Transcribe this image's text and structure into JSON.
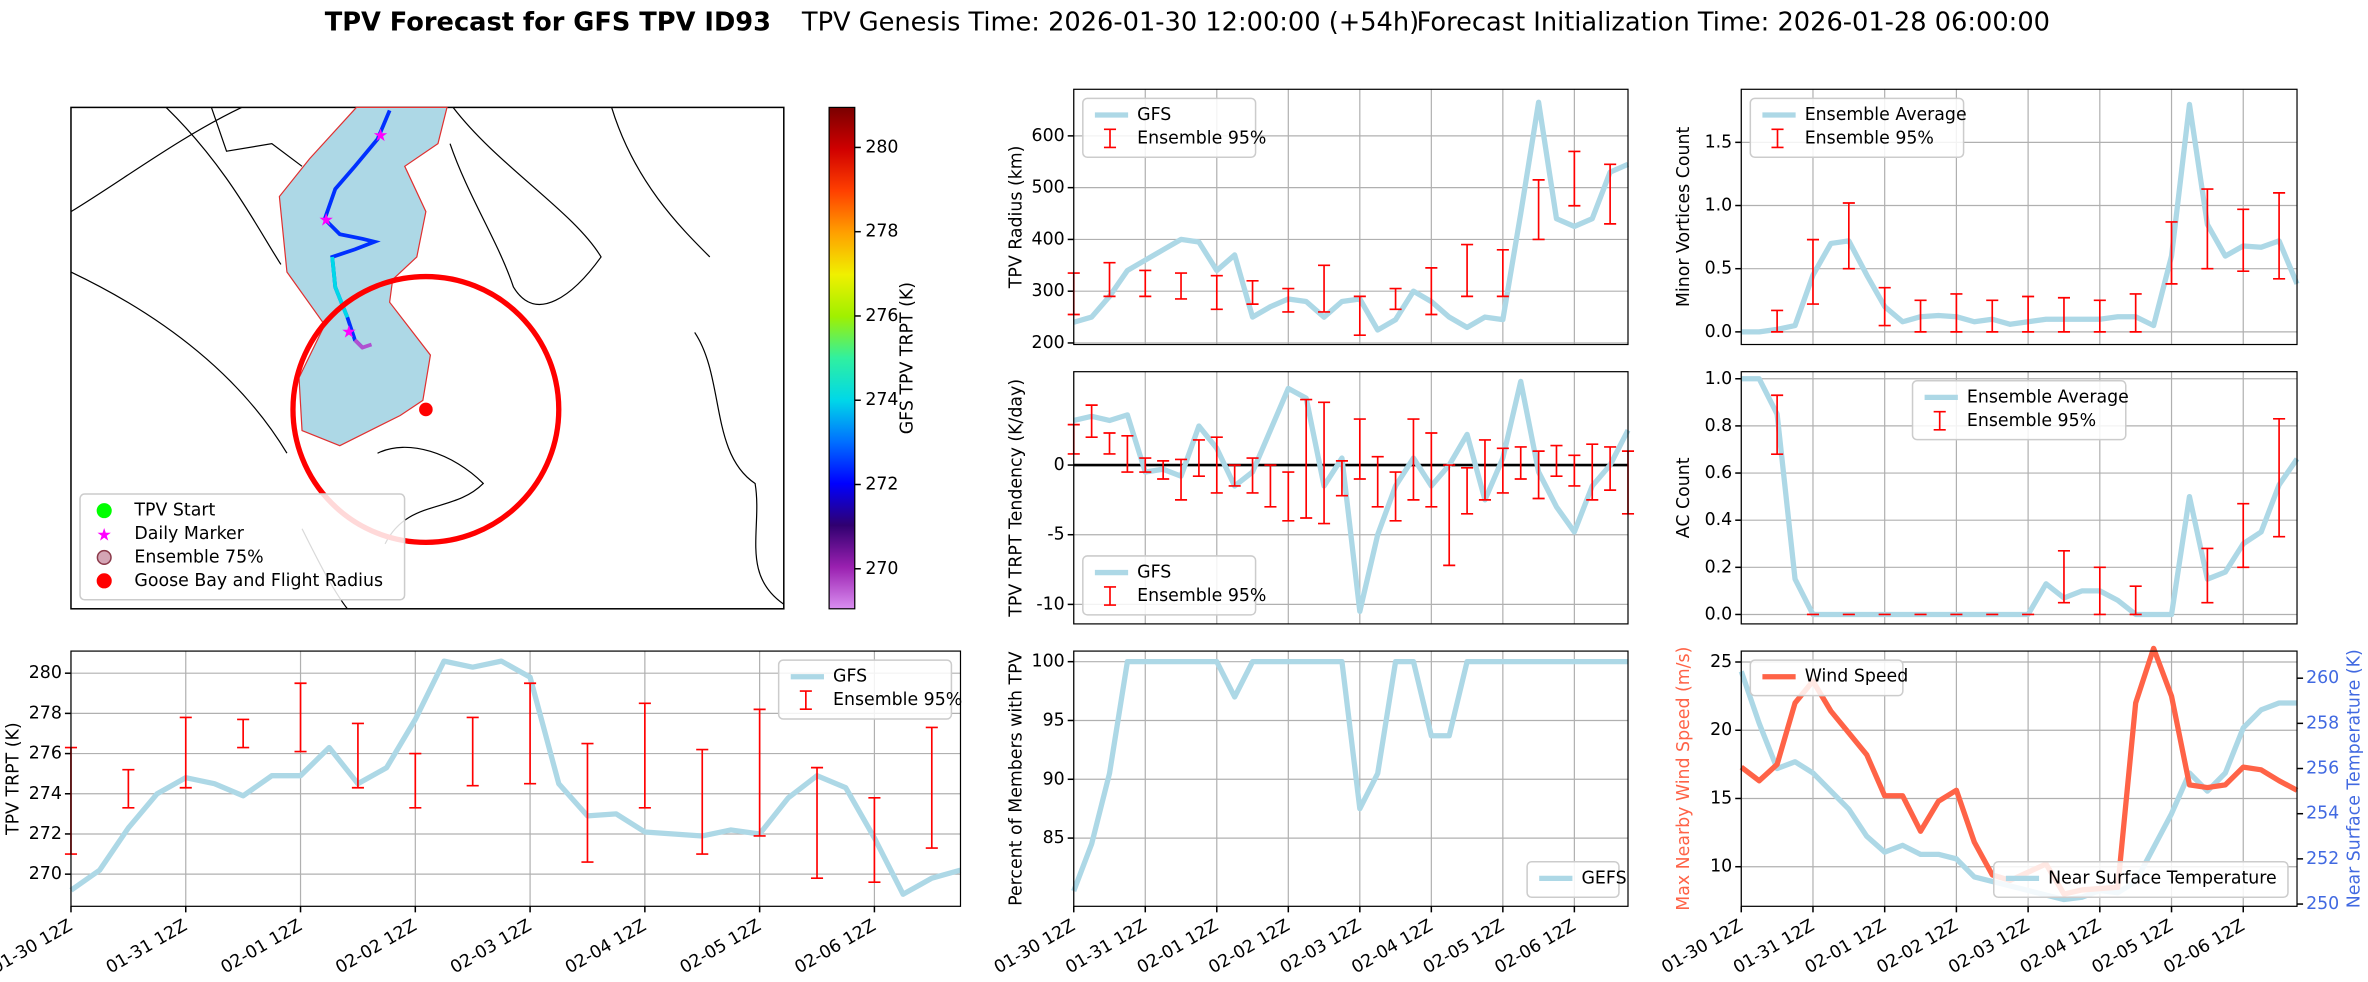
{
  "header": {
    "title": "TPV Forecast for GFS TPV ID93",
    "genesis": "TPV Genesis Time: 2026-01-30 12:00:00 (+54h)",
    "init": "Forecast Initialization Time: 2026-01-28 06:00:00"
  },
  "chart_data": [
    {
      "type": "map",
      "colorbar_label": "GFS TPV TRPT (K)",
      "ylim": [
        269.05,
        280.95
      ],
      "yticks": [
        270,
        272,
        274,
        276,
        278,
        280
      ],
      "colors": [
        "#d98ef0",
        "#9a20b0",
        "#300070",
        "#0000ff",
        "#0070ff",
        "#00d8e8",
        "#30f0a0",
        "#a0f000",
        "#f0f000",
        "#ffa000",
        "#ff4000",
        "#d00000",
        "#7a0000"
      ],
      "legend": "lower left",
      "legend_entries": [
        {
          "name": "TPV Start",
          "color": "#00ff00",
          "marker": "circle"
        },
        {
          "name": "Daily Marker",
          "color": "#ff00ff",
          "marker": "star"
        },
        {
          "name": "Ensemble 75%",
          "color": "#d4a5b5",
          "edge": "#8b3a4a",
          "marker": "circle"
        },
        {
          "name": "Goose Bay and Flight Radius",
          "color": "#ff0000",
          "marker": "circle"
        }
      ]
    },
    {
      "type": "line",
      "ylabel": "TPV Radius (km)",
      "ylim": [
        197,
        690
      ],
      "yticks": [
        200,
        300,
        400,
        500,
        600
      ],
      "grid": true,
      "legend": "upper left",
      "series": [
        {
          "name": "GFS",
          "color": "#add8e6",
          "values": [
            240,
            250,
            290,
            340,
            360,
            380,
            400,
            395,
            340,
            370,
            250,
            270,
            285,
            280,
            250,
            280,
            285,
            225,
            245,
            300,
            280,
            250,
            230,
            250,
            245,
            450,
            665,
            440,
            425,
            440,
            530,
            545
          ]
        },
        {
          "name": "Ensemble 95%",
          "type": "errorbar",
          "color": "#ff0000",
          "low": [
            255,
            null,
            290,
            null,
            290,
            null,
            285,
            null,
            265,
            null,
            275,
            null,
            260,
            null,
            260,
            null,
            215,
            null,
            265,
            null,
            255,
            null,
            290,
            null,
            290,
            null,
            400,
            null,
            465,
            null,
            430,
            null
          ],
          "high": [
            335,
            null,
            355,
            null,
            340,
            null,
            335,
            null,
            330,
            null,
            320,
            null,
            305,
            null,
            350,
            null,
            290,
            null,
            305,
            null,
            345,
            null,
            390,
            null,
            380,
            null,
            515,
            null,
            570,
            null,
            545,
            null
          ]
        }
      ]
    },
    {
      "type": "line",
      "ylabel": "Minor Vortices Count",
      "ylim": [
        -0.1,
        1.92
      ],
      "yticks": [
        {
          "value": 0,
          "label": "0.0"
        },
        0.5,
        {
          "value": 1,
          "label": "1.0"
        },
        1.5
      ],
      "grid": true,
      "legend": "upper left",
      "series": [
        {
          "name": "Ensemble Average",
          "color": "#add8e6",
          "values": [
            0,
            0,
            0.02,
            0.05,
            0.45,
            0.7,
            0.72,
            0.45,
            0.2,
            0.08,
            0.12,
            0.13,
            0.12,
            0.08,
            0.1,
            0.06,
            0.08,
            0.1,
            0.1,
            0.1,
            0.1,
            0.12,
            0.12,
            0.05,
            0.6,
            1.8,
            0.85,
            0.6,
            0.68,
            0.67,
            0.72,
            0.38
          ]
        },
        {
          "name": "Ensemble 95%",
          "type": "errorbar",
          "color": "#ff0000",
          "low": [
            null,
            null,
            0,
            null,
            0.22,
            null,
            0.5,
            null,
            0.05,
            null,
            0,
            null,
            0,
            null,
            0,
            null,
            0,
            null,
            0,
            null,
            0,
            null,
            0,
            null,
            0.38,
            null,
            0.5,
            null,
            0.48,
            null,
            0.42,
            null
          ],
          "high": [
            null,
            null,
            0.17,
            null,
            0.73,
            null,
            1.02,
            null,
            0.35,
            null,
            0.25,
            null,
            0.3,
            null,
            0.25,
            null,
            0.28,
            null,
            0.27,
            null,
            0.25,
            null,
            0.3,
            null,
            0.87,
            null,
            1.13,
            null,
            0.97,
            null,
            1.1,
            null
          ]
        }
      ]
    },
    {
      "type": "line",
      "ylabel": "TPV TRPT Tendency (K/day)",
      "ylim": [
        -11.4,
        6.7
      ],
      "yticks": [
        -10,
        -5,
        0
      ],
      "grid": true,
      "legend": "lower left",
      "hline": 0,
      "series": [
        {
          "name": "GFS",
          "color": "#add8e6",
          "values": [
            3.2,
            3.5,
            3.2,
            3.6,
            -0.5,
            -0.3,
            -0.8,
            2.8,
            1.2,
            -1.5,
            -0.5,
            2.5,
            5.5,
            4.8,
            -1.5,
            0.5,
            -10.5,
            -5,
            -1.5,
            0.5,
            -1.5,
            0,
            2.2,
            -2.5,
            0.5,
            6,
            -0.5,
            -3,
            -4.8,
            -1.5,
            0,
            2.5
          ]
        },
        {
          "name": "Ensemble 95%",
          "type": "errorbar",
          "color": "#ff0000",
          "low": [
            0.8,
            2.0,
            0.8,
            -0.5,
            -0.5,
            -1,
            -2.5,
            -0.8,
            -2,
            -1.5,
            -2,
            -3,
            -4,
            -3.8,
            -4.2,
            -2.2,
            -1,
            -3,
            -4,
            -2.5,
            -3,
            -7.2,
            -3.5,
            -2.5,
            -2,
            -1,
            -2.4,
            -0.8,
            -1.5,
            -2.5,
            -1.8,
            -3.5
          ],
          "high": [
            2.9,
            4.3,
            2.3,
            2.1,
            0.5,
            0.3,
            0.4,
            1.8,
            2.0,
            0,
            0.5,
            0,
            -0.5,
            4.7,
            4.5,
            0.3,
            3.3,
            0.6,
            -0.5,
            3.3,
            2.3,
            0,
            -0.2,
            1.8,
            1.2,
            1.3,
            1,
            1.4,
            0.7,
            1.5,
            1.3,
            1
          ]
        }
      ]
    },
    {
      "type": "line",
      "ylabel": "AC Count",
      "ylim": [
        -0.04,
        1.03
      ],
      "yticks": [
        {
          "value": 0,
          "label": "0.0"
        },
        0.2,
        0.4,
        0.6,
        0.8,
        {
          "value": 1,
          "label": "1.0"
        }
      ],
      "grid": true,
      "legend": "upper center",
      "series": [
        {
          "name": "Ensemble Average",
          "color": "#add8e6",
          "values": [
            1,
            1,
            0.85,
            0.15,
            0,
            0,
            0,
            0,
            0,
            0,
            0,
            0,
            0,
            0,
            0,
            0,
            0,
            0.13,
            0.07,
            0.1,
            0.1,
            0.06,
            0,
            0,
            0,
            0.5,
            0.15,
            0.18,
            0.3,
            0.35,
            0.55,
            0.66
          ]
        },
        {
          "name": "Ensemble 95%",
          "type": "errorbar",
          "color": "#ff0000",
          "low": [
            null,
            null,
            0.68,
            null,
            0,
            null,
            0,
            null,
            0,
            null,
            0,
            null,
            0,
            null,
            0,
            null,
            0,
            null,
            0.05,
            null,
            0,
            null,
            0,
            null,
            null,
            null,
            0.05,
            null,
            0.2,
            null,
            0.33,
            null
          ],
          "high": [
            null,
            null,
            0.93,
            null,
            0,
            null,
            0,
            null,
            0,
            null,
            0,
            null,
            0,
            null,
            0,
            null,
            0,
            null,
            0.27,
            null,
            0.2,
            null,
            0.12,
            null,
            null,
            null,
            0.28,
            null,
            0.47,
            null,
            0.83,
            null
          ]
        }
      ]
    },
    {
      "type": "line",
      "ylabel": "TPV TRPT (K)",
      "ylim": [
        268.4,
        281.1
      ],
      "yticks": [
        270,
        272,
        274,
        276,
        278,
        280
      ],
      "grid": true,
      "legend": "upper right",
      "categories": [
        "01-30 12Z",
        null,
        null,
        null,
        "01-31 12Z",
        null,
        null,
        null,
        "02-01 12Z",
        null,
        null,
        null,
        "02-02 12Z",
        null,
        null,
        null,
        "02-03 12Z",
        null,
        null,
        null,
        "02-04 12Z",
        null,
        null,
        null,
        "02-05 12Z",
        null,
        null,
        null,
        "02-06 12Z",
        null,
        null,
        null
      ],
      "series": [
        {
          "name": "GFS",
          "color": "#add8e6",
          "values": [
            269.2,
            270.2,
            272.3,
            274.0,
            274.8,
            274.5,
            273.9,
            274.9,
            274.9,
            276.3,
            274.5,
            275.3,
            277.7,
            280.6,
            280.3,
            280.6,
            279.8,
            274.5,
            272.9,
            273.0,
            272.1,
            272.0,
            271.9,
            272.2,
            272.0,
            273.8,
            274.9,
            274.3,
            271.8,
            269.0,
            269.8,
            270.2
          ]
        },
        {
          "name": "Ensemble 95%",
          "type": "errorbar",
          "color": "#ff0000",
          "low": [
            271,
            null,
            273.3,
            null,
            274.3,
            null,
            276.3,
            null,
            276.1,
            null,
            274.3,
            null,
            273.3,
            null,
            274.4,
            null,
            274.5,
            null,
            270.6,
            null,
            273.3,
            null,
            271,
            null,
            271.9,
            null,
            269.8,
            null,
            269.6,
            null,
            271.3,
            null
          ],
          "high": [
            276.3,
            null,
            275.2,
            null,
            277.8,
            null,
            277.7,
            null,
            279.5,
            null,
            277.5,
            null,
            276,
            null,
            277.8,
            null,
            279.5,
            null,
            276.5,
            null,
            278.5,
            null,
            276.2,
            null,
            278.2,
            null,
            275.3,
            null,
            273.8,
            null,
            277.3,
            null
          ]
        }
      ]
    },
    {
      "type": "line",
      "ylabel": "Percent of Members with TPV",
      "ylim": [
        79.2,
        100.9
      ],
      "yticks": [
        85,
        90,
        95,
        100
      ],
      "grid": true,
      "legend": "lower right",
      "categories": [
        "01-30 12Z",
        null,
        null,
        null,
        "01-31 12Z",
        null,
        null,
        null,
        "02-01 12Z",
        null,
        null,
        null,
        "02-02 12Z",
        null,
        null,
        null,
        "02-03 12Z",
        null,
        null,
        null,
        "02-04 12Z",
        null,
        null,
        null,
        "02-05 12Z",
        null,
        null,
        null,
        "02-06 12Z",
        null,
        null,
        null
      ],
      "series": [
        {
          "name": "GEFS",
          "color": "#add8e6",
          "values": [
            80.5,
            84.5,
            90.5,
            100,
            100,
            100,
            100,
            100,
            100,
            97,
            100,
            100,
            100,
            100,
            100,
            100,
            87.5,
            90.5,
            100,
            100,
            93.7,
            93.7,
            100,
            100,
            100,
            100,
            100,
            100,
            100,
            100,
            100,
            100
          ]
        }
      ]
    },
    {
      "type": "line",
      "ylabel": "Max Nearby Wind Speed (m/s)",
      "ylabel_color": "#ff6347",
      "y2label": "Near Surface Temperature (K)",
      "y2label_color": "#4169e1",
      "ylim": [
        7.1,
        25.8
      ],
      "yticks": [
        10,
        15,
        20,
        25
      ],
      "y2lim": [
        249.9,
        261.2
      ],
      "y2ticks": [
        250,
        252,
        254,
        256,
        258,
        260
      ],
      "grid": true,
      "legend": "upper left",
      "legend2": "lower right",
      "categories": [
        "01-30 12Z",
        null,
        null,
        null,
        "01-31 12Z",
        null,
        null,
        null,
        "02-01 12Z",
        null,
        null,
        null,
        "02-02 12Z",
        null,
        null,
        null,
        "02-03 12Z",
        null,
        null,
        null,
        "02-04 12Z",
        null,
        null,
        null,
        "02-05 12Z",
        null,
        null,
        null,
        "02-06 12Z",
        null,
        null,
        null
      ],
      "series": [
        {
          "name": "Near Surface Temperature",
          "color": "#add8e6",
          "axis": "y2",
          "values": [
            260.3,
            258.0,
            256.0,
            256.3,
            255.8,
            255.0,
            254.2,
            253.0,
            252.3,
            252.6,
            252.2,
            252.2,
            252.0,
            251.2,
            251.0,
            250.8,
            250.6,
            250.4,
            250.2,
            250.3,
            250.6,
            250.5,
            251.0,
            252.5,
            254.0,
            255.8,
            255.0,
            255.8,
            257.8,
            258.6,
            258.9,
            258.9
          ]
        },
        {
          "name": "Wind Speed",
          "color": "#ff6347",
          "values": [
            17.3,
            16.3,
            17.5,
            22.0,
            23.6,
            21.4,
            19.8,
            18.2,
            15.2,
            15.2,
            12.6,
            14.8,
            15.6,
            11.8,
            9.4,
            9.0,
            9.6,
            10.2,
            8.0,
            8.3,
            8.4,
            8.5,
            22.0,
            26.0,
            22.5,
            16.0,
            15.8,
            16.0,
            17.3,
            17.1,
            16.3,
            15.6
          ]
        }
      ]
    }
  ]
}
